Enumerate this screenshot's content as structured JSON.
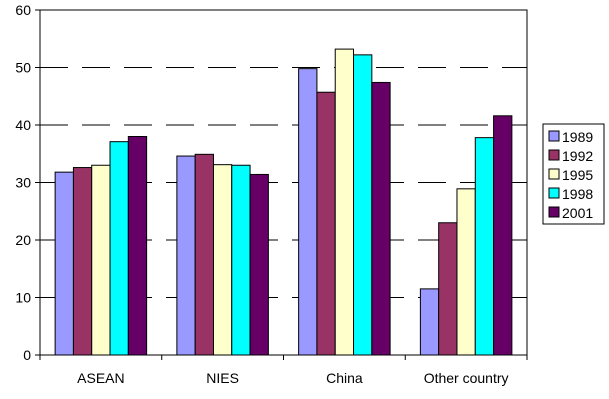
{
  "chart_data": {
    "type": "bar",
    "categories": [
      "ASEAN",
      "NIES",
      "China",
      "Other country"
    ],
    "series": [
      {
        "name": "1989",
        "color": "#9999FF",
        "values": [
          31.8,
          34.6,
          49.8,
          11.5
        ]
      },
      {
        "name": "1992",
        "color": "#993366",
        "values": [
          32.6,
          34.9,
          45.7,
          23.0
        ]
      },
      {
        "name": "1995",
        "color": "#FFFFCC",
        "values": [
          33.0,
          33.1,
          53.2,
          28.9
        ]
      },
      {
        "name": "1998",
        "color": "#00FFFF",
        "values": [
          37.1,
          33.0,
          52.2,
          37.8
        ]
      },
      {
        "name": "2001",
        "color": "#660066",
        "values": [
          38.0,
          31.4,
          47.4,
          41.6
        ]
      }
    ],
    "title": "",
    "xlabel": "",
    "ylabel": "",
    "ylim": [
      0,
      60
    ],
    "yticks": [
      "0",
      "10",
      "20",
      "30",
      "40",
      "50",
      "60"
    ],
    "grid": "dashed horizontal",
    "legend_position": "right"
  }
}
